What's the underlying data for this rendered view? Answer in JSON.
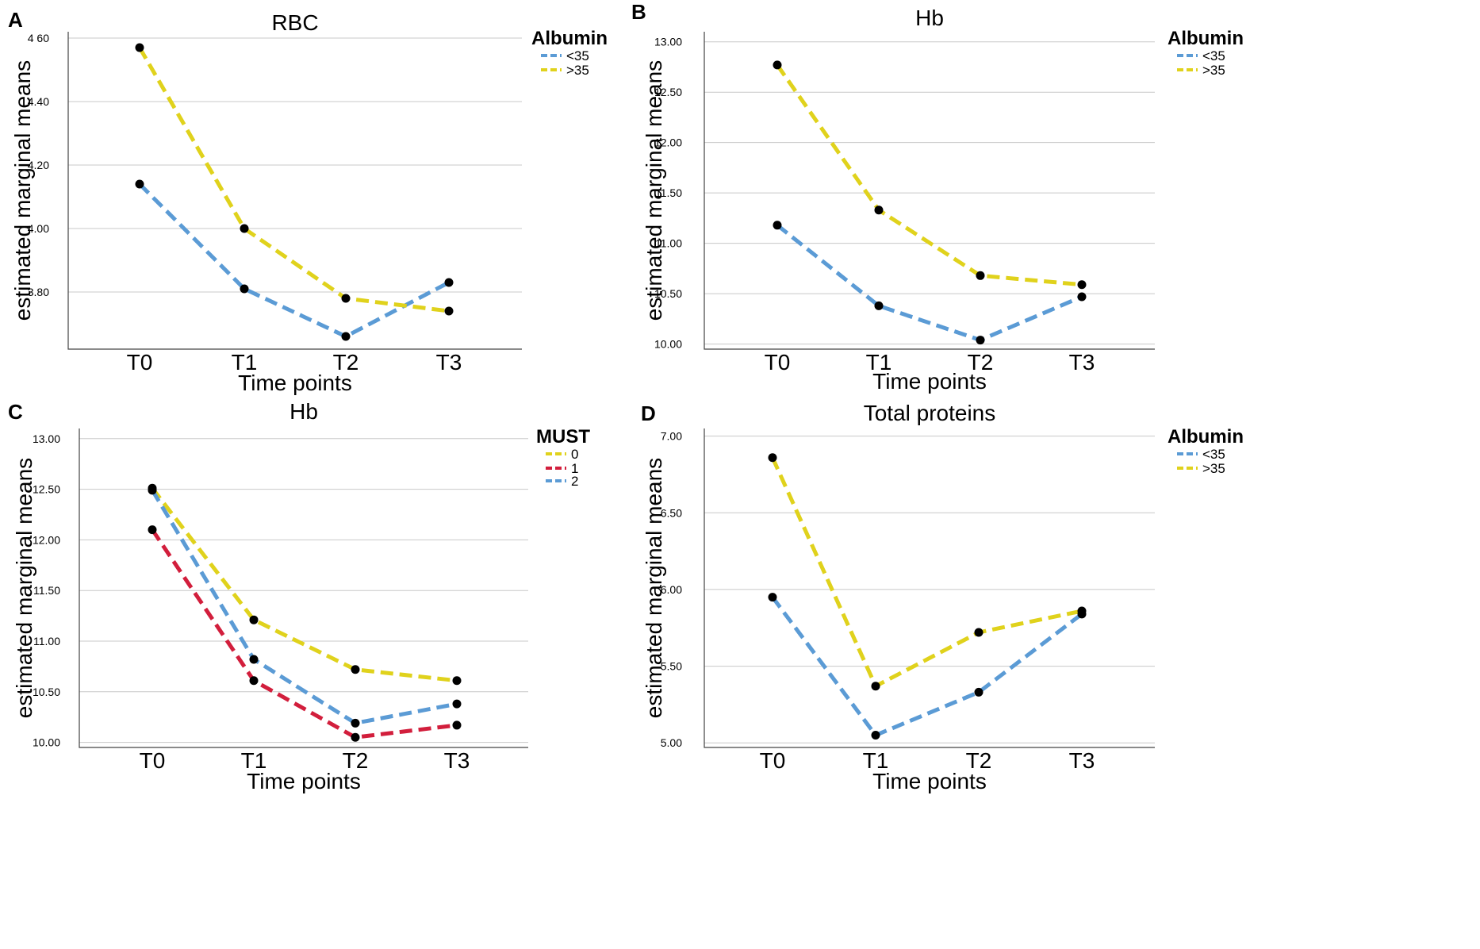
{
  "chart_data": [
    {
      "panel": "A",
      "type": "line",
      "title": "RBC",
      "xlabel": "Time points",
      "ylabel": "estimated marginal means",
      "categories": [
        "T0",
        "T1",
        "T2",
        "T3"
      ],
      "ylim": [
        3.62,
        4.62
      ],
      "yticks": [
        3.8,
        4.0,
        4.2,
        4.4,
        4.6
      ],
      "ytick_labels": [
        "3.80",
        "4.00",
        "4.20",
        "4.40",
        "4 60"
      ],
      "legend_title": "Albumin",
      "series": [
        {
          "name": "<35",
          "color": "#5B9BD5",
          "values": [
            4.14,
            3.81,
            3.66,
            3.83
          ]
        },
        {
          "name": ">35",
          "color": "#E0D21C",
          "values": [
            4.57,
            4.0,
            3.78,
            3.74
          ]
        }
      ]
    },
    {
      "panel": "B",
      "type": "line",
      "title": "Hb",
      "xlabel": "Time points",
      "ylabel": "estimated marginal means",
      "categories": [
        "T0",
        "T1",
        "T2",
        "T3"
      ],
      "ylim": [
        9.95,
        13.1
      ],
      "yticks": [
        10.0,
        10.5,
        11.0,
        11.5,
        12.0,
        12.5,
        13.0
      ],
      "ytick_labels": [
        "10.00",
        "10.50",
        "11.00",
        "11.50",
        "12.00",
        "12.50",
        "13.00"
      ],
      "legend_title": "Albumin",
      "series": [
        {
          "name": "<35",
          "color": "#5B9BD5",
          "values": [
            11.18,
            10.38,
            10.04,
            10.47
          ]
        },
        {
          "name": ">35",
          "color": "#E0D21C",
          "values": [
            12.77,
            11.33,
            10.68,
            10.59
          ]
        }
      ]
    },
    {
      "panel": "C",
      "type": "line",
      "title": "Hb",
      "xlabel": "Time points",
      "ylabel": "estimated marginal means",
      "categories": [
        "T0",
        "T1",
        "T2",
        "T3"
      ],
      "ylim": [
        9.95,
        13.1
      ],
      "yticks": [
        10.0,
        10.5,
        11.0,
        11.5,
        12.0,
        12.5,
        13.0
      ],
      "ytick_labels": [
        "10.00",
        "10.50",
        "11.00",
        "11.50",
        "12.00",
        "12.50",
        "13.00"
      ],
      "legend_title": "MUST",
      "series": [
        {
          "name": "0",
          "color": "#E0D21C",
          "values": [
            12.51,
            11.21,
            10.72,
            10.61
          ]
        },
        {
          "name": "1",
          "color": "#D21E3C",
          "values": [
            12.1,
            10.61,
            10.05,
            10.17
          ]
        },
        {
          "name": "2",
          "color": "#5B9BD5",
          "values": [
            12.49,
            10.82,
            10.19,
            10.38
          ]
        }
      ]
    },
    {
      "panel": "D",
      "type": "line",
      "title": "Total proteins",
      "xlabel": "Time points",
      "ylabel": "estimated marginal means",
      "categories": [
        "T0",
        "T1",
        "T2",
        "T3"
      ],
      "ylim": [
        4.97,
        7.05
      ],
      "yticks": [
        5.0,
        5.5,
        6.0,
        6.5,
        7.0
      ],
      "ytick_labels": [
        "5.00",
        "5.50",
        "6.00",
        "6.50",
        "7.00"
      ],
      "legend_title": "Albumin",
      "series": [
        {
          "name": "<35",
          "color": "#5B9BD5",
          "values": [
            5.95,
            5.05,
            5.33,
            5.84
          ]
        },
        {
          "name": ">35",
          "color": "#E0D21C",
          "values": [
            6.86,
            5.37,
            5.72,
            5.86
          ]
        }
      ]
    }
  ]
}
